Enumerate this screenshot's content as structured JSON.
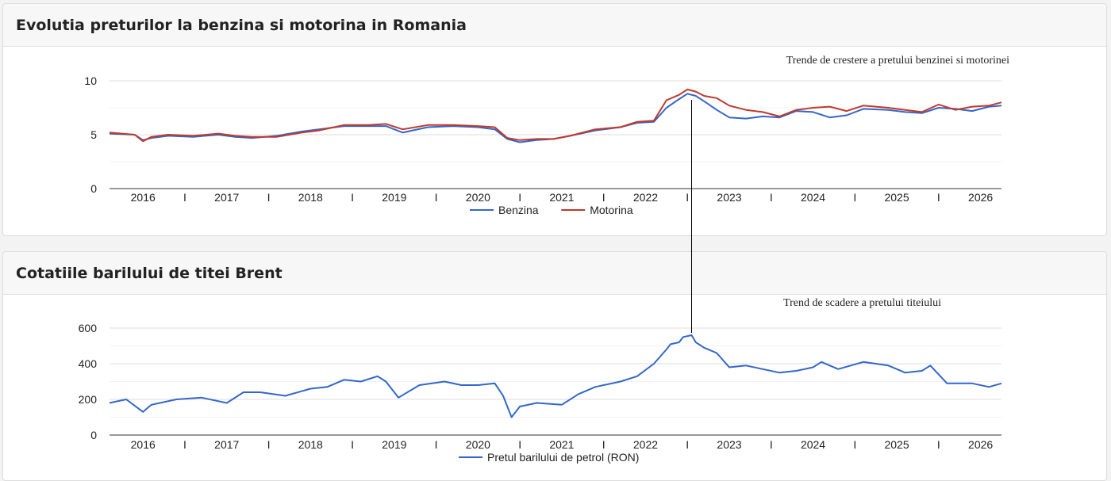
{
  "charts": [
    {
      "title": "Evolutia preturilor la benzina si motorina in Romania",
      "annotation": "Trende de crestere a pretului benzinei si motorinei",
      "chart_data": {
        "type": "line",
        "y_ticks": [
          0,
          5,
          10
        ],
        "ylim": [
          0,
          10
        ],
        "xlim": [
          2015.5,
          2026.15
        ],
        "x_tick_labels": [
          "2016",
          "2017",
          "2018",
          "2019",
          "2020",
          "2021",
          "2022",
          "2023",
          "2024",
          "2025",
          "2026"
        ],
        "x_tick_positions": [
          2015.9,
          2016.9,
          2017.9,
          2018.9,
          2019.9,
          2020.9,
          2021.9,
          2022.9,
          2023.9,
          2024.9,
          2025.9
        ],
        "x_minor_label": "I",
        "x_minor_positions": [
          2016.4,
          2017.4,
          2018.4,
          2019.4,
          2020.4,
          2021.4,
          2022.4,
          2023.4,
          2024.4,
          2025.4
        ],
        "series": [
          {
            "name": "Benzina",
            "color": "#3366cc",
            "x": [
              2015.5,
              2015.8,
              2015.9,
              2016.0,
              2016.2,
              2016.5,
              2016.8,
              2017.0,
              2017.2,
              2017.5,
              2017.8,
              2018.0,
              2018.3,
              2018.6,
              2018.8,
              2019.0,
              2019.3,
              2019.6,
              2019.9,
              2020.1,
              2020.25,
              2020.4,
              2020.6,
              2020.8,
              2021.0,
              2021.3,
              2021.6,
              2021.8,
              2022.0,
              2022.15,
              2022.3,
              2022.4,
              2022.5,
              2022.6,
              2022.75,
              2022.9,
              2023.1,
              2023.3,
              2023.5,
              2023.7,
              2023.9,
              2024.1,
              2024.3,
              2024.5,
              2024.8,
              2025.0,
              2025.2,
              2025.4,
              2025.6,
              2025.8,
              2026.0,
              2026.15
            ],
            "values": [
              5.1,
              5.0,
              4.5,
              4.7,
              4.9,
              4.8,
              5.0,
              4.8,
              4.7,
              4.9,
              5.3,
              5.5,
              5.8,
              5.8,
              5.8,
              5.2,
              5.7,
              5.8,
              5.7,
              5.5,
              4.6,
              4.3,
              4.5,
              4.6,
              4.9,
              5.4,
              5.7,
              6.1,
              6.2,
              7.5,
              8.3,
              8.8,
              8.6,
              8.1,
              7.3,
              6.6,
              6.5,
              6.7,
              6.6,
              7.2,
              7.1,
              6.6,
              6.8,
              7.4,
              7.3,
              7.1,
              7.0,
              7.5,
              7.4,
              7.2,
              7.6,
              7.7
            ]
          },
          {
            "name": "Motorina",
            "color": "#c0392b",
            "x": [
              2015.5,
              2015.8,
              2015.9,
              2016.0,
              2016.2,
              2016.5,
              2016.8,
              2017.0,
              2017.2,
              2017.5,
              2017.8,
              2018.0,
              2018.3,
              2018.6,
              2018.8,
              2019.0,
              2019.3,
              2019.6,
              2019.9,
              2020.1,
              2020.25,
              2020.4,
              2020.6,
              2020.8,
              2021.0,
              2021.3,
              2021.6,
              2021.8,
              2022.0,
              2022.15,
              2022.3,
              2022.4,
              2022.5,
              2022.6,
              2022.75,
              2022.9,
              2023.1,
              2023.3,
              2023.5,
              2023.7,
              2023.9,
              2024.1,
              2024.3,
              2024.5,
              2024.8,
              2025.0,
              2025.2,
              2025.4,
              2025.6,
              2025.8,
              2026.0,
              2026.15
            ],
            "values": [
              5.2,
              5.0,
              4.4,
              4.8,
              5.0,
              4.9,
              5.1,
              4.9,
              4.8,
              4.8,
              5.2,
              5.4,
              5.9,
              5.9,
              6.0,
              5.5,
              5.9,
              5.9,
              5.8,
              5.7,
              4.7,
              4.5,
              4.6,
              4.6,
              4.9,
              5.5,
              5.7,
              6.2,
              6.3,
              8.2,
              8.7,
              9.2,
              9.0,
              8.6,
              8.4,
              7.7,
              7.3,
              7.1,
              6.7,
              7.3,
              7.5,
              7.6,
              7.2,
              7.7,
              7.5,
              7.3,
              7.1,
              7.8,
              7.3,
              7.6,
              7.7,
              8.0
            ]
          }
        ]
      }
    },
    {
      "title": "Cotatiile barilului de titei Brent",
      "annotation": "Trend de scadere a pretului titeiului",
      "chart_data": {
        "type": "line",
        "y_ticks": [
          0,
          200,
          400,
          600
        ],
        "ylim": [
          0,
          600
        ],
        "xlim": [
          2015.5,
          2026.15
        ],
        "x_tick_labels": [
          "2016",
          "2017",
          "2018",
          "2019",
          "2020",
          "2021",
          "2022",
          "2023",
          "2024",
          "2025",
          "2026"
        ],
        "x_tick_positions": [
          2015.9,
          2016.9,
          2017.9,
          2018.9,
          2019.9,
          2020.9,
          2021.9,
          2022.9,
          2023.9,
          2024.9,
          2025.9
        ],
        "x_minor_label": "I",
        "x_minor_positions": [
          2016.4,
          2017.4,
          2018.4,
          2019.4,
          2020.4,
          2021.4,
          2022.4,
          2023.4,
          2024.4,
          2025.4
        ],
        "series": [
          {
            "name": "Pretul barilului de petrol (RON)",
            "color": "#3366cc",
            "x": [
              2015.5,
              2015.7,
              2015.9,
              2016.0,
              2016.3,
              2016.6,
              2016.9,
              2017.1,
              2017.3,
              2017.6,
              2017.9,
              2018.1,
              2018.3,
              2018.5,
              2018.7,
              2018.8,
              2018.95,
              2019.2,
              2019.5,
              2019.7,
              2019.9,
              2020.1,
              2020.2,
              2020.3,
              2020.4,
              2020.6,
              2020.9,
              2021.1,
              2021.3,
              2021.6,
              2021.8,
              2022.0,
              2022.15,
              2022.2,
              2022.3,
              2022.35,
              2022.45,
              2022.5,
              2022.6,
              2022.75,
              2022.9,
              2023.1,
              2023.3,
              2023.5,
              2023.7,
              2023.9,
              2024.0,
              2024.2,
              2024.5,
              2024.8,
              2025.0,
              2025.2,
              2025.3,
              2025.5,
              2025.8,
              2026.0,
              2026.15
            ],
            "values": [
              180,
              200,
              130,
              170,
              200,
              210,
              180,
              240,
              240,
              220,
              260,
              270,
              310,
              300,
              330,
              300,
              210,
              280,
              300,
              280,
              280,
              290,
              220,
              100,
              160,
              180,
              170,
              230,
              270,
              300,
              330,
              400,
              480,
              510,
              520,
              550,
              560,
              520,
              490,
              460,
              380,
              390,
              370,
              350,
              360,
              380,
              410,
              370,
              410,
              390,
              350,
              360,
              390,
              290,
              290,
              270,
              290
            ]
          }
        ]
      }
    }
  ],
  "annotation_line": {
    "x": 2022.45
  }
}
